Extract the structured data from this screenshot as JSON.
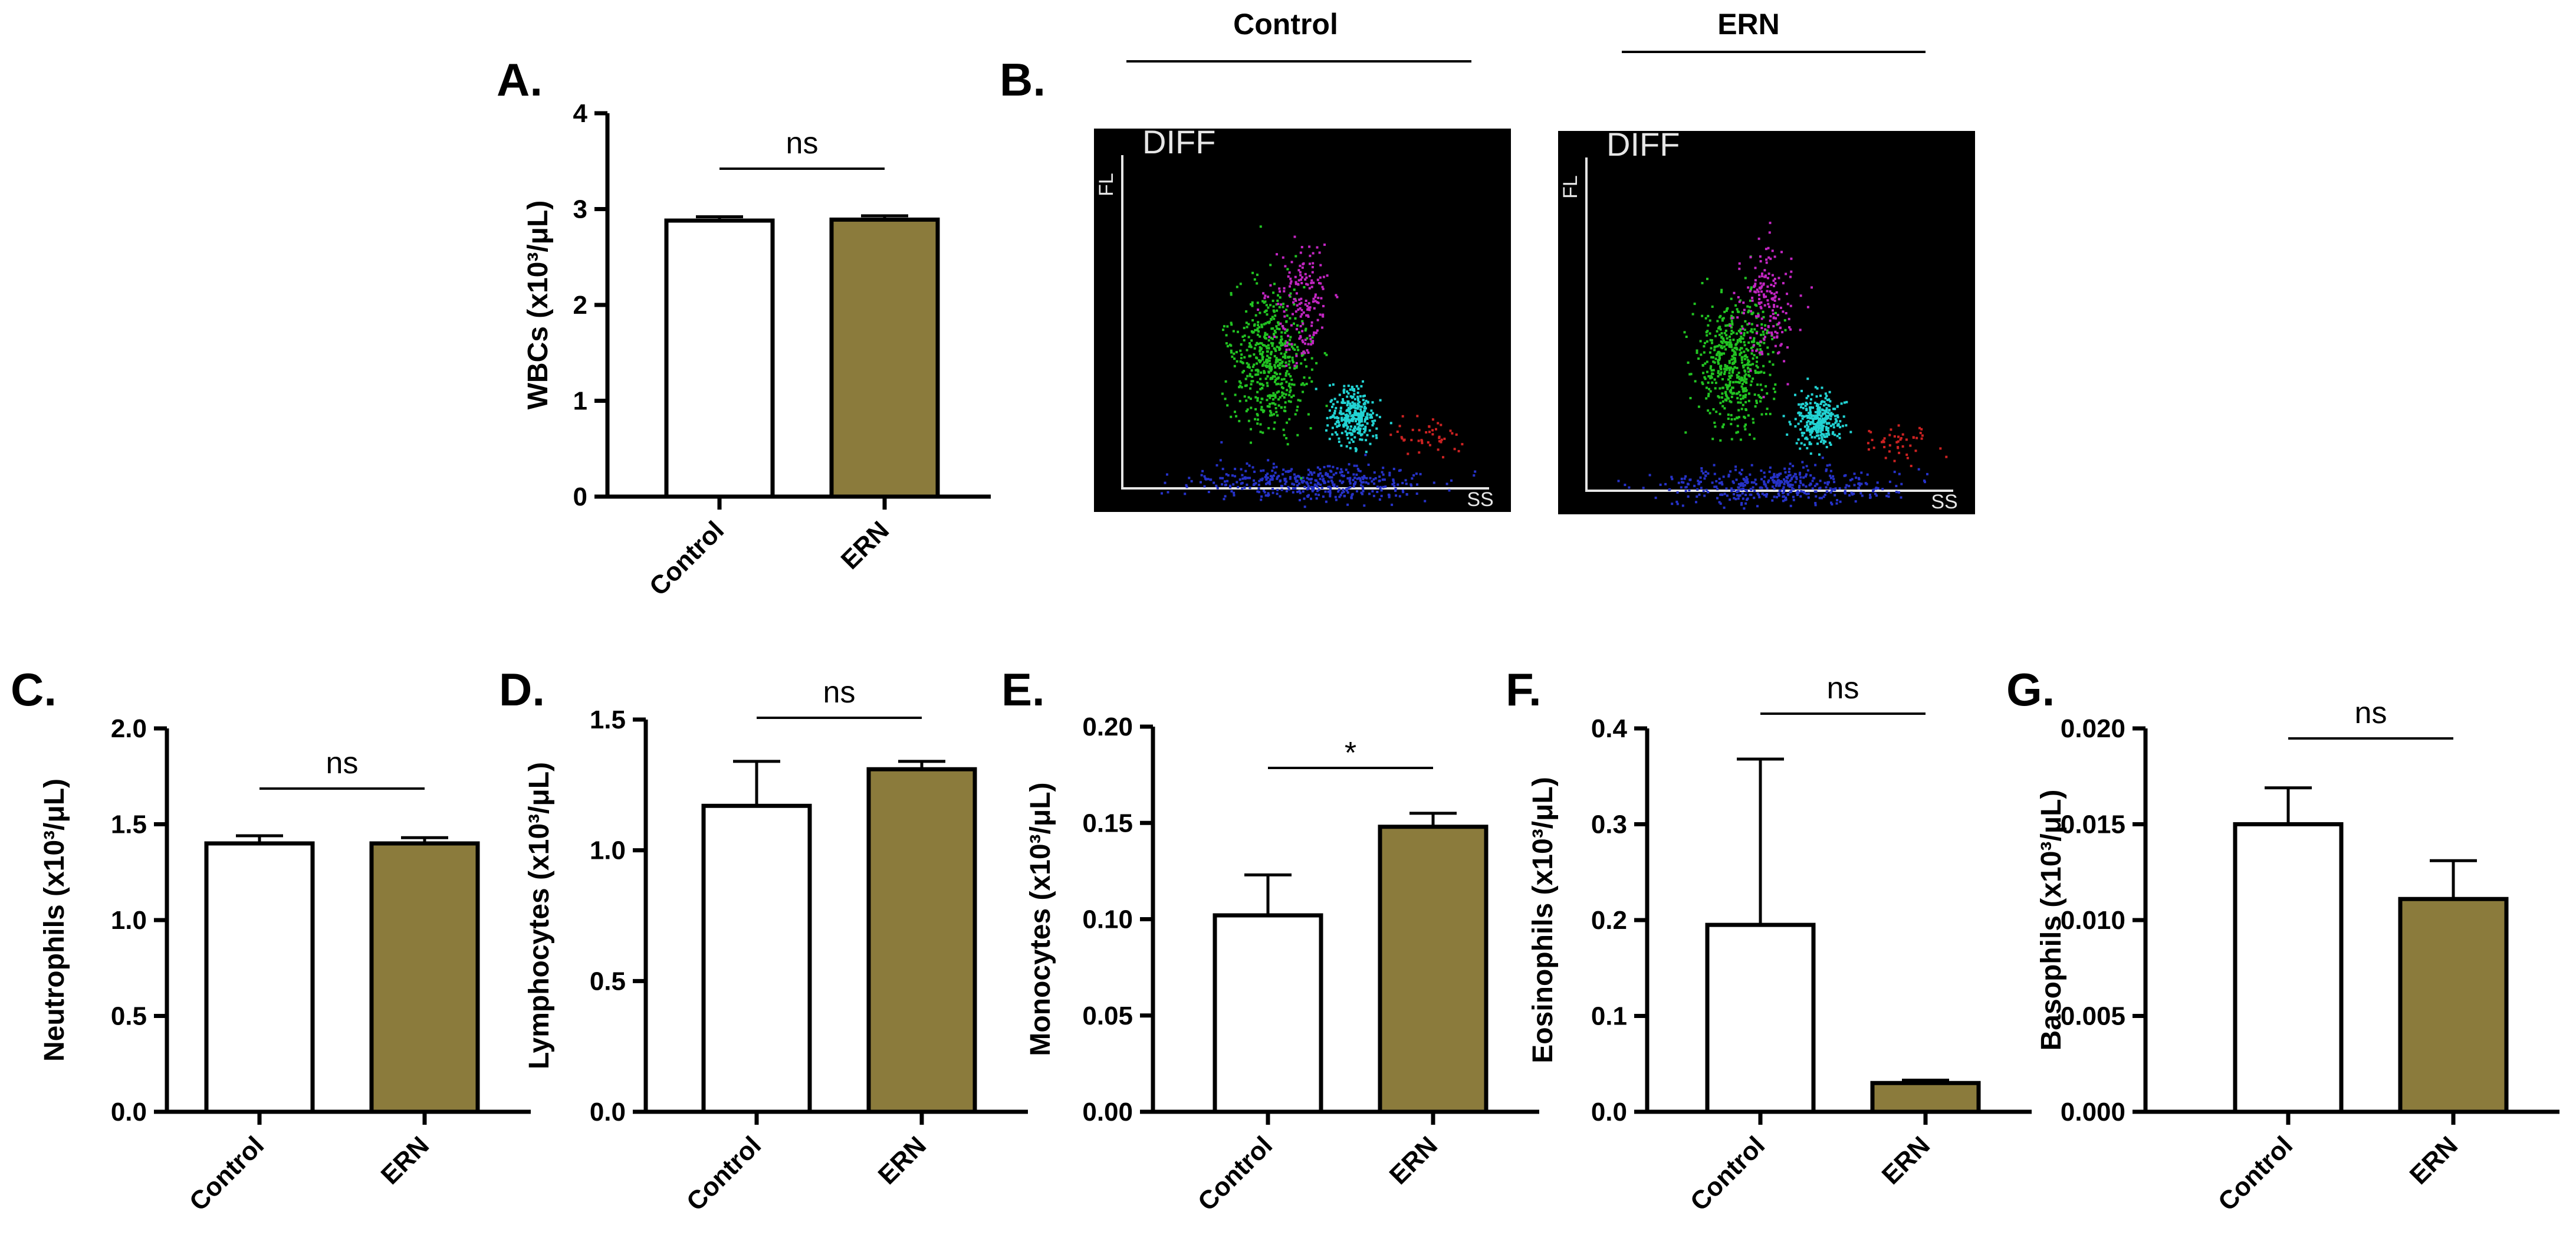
{
  "chart_data": [
    {
      "panel": "A.",
      "type": "bar",
      "categories": [
        "Control",
        "ERN"
      ],
      "values": [
        2.88,
        2.89
      ],
      "errors": [
        0.04,
        0.04
      ],
      "ylabel": "WBCs (x10³/μL)",
      "yticks": [
        "0",
        "1",
        "2",
        "3",
        "4"
      ],
      "ylim": [
        0,
        4
      ],
      "significance": "ns",
      "colors": [
        "#ffffff",
        "#8b7b3c"
      ]
    },
    {
      "panel": "C.",
      "type": "bar",
      "categories": [
        "Control",
        "ERN"
      ],
      "values": [
        1.4,
        1.4
      ],
      "errors": [
        0.04,
        0.03
      ],
      "ylabel": "Neutrophils (x10³/μL)",
      "yticks": [
        "0.0",
        "0.5",
        "1.0",
        "1.5",
        "2.0"
      ],
      "ylim": [
        0,
        2
      ],
      "significance": "ns",
      "colors": [
        "#ffffff",
        "#8b7b3c"
      ]
    },
    {
      "panel": "D.",
      "type": "bar",
      "categories": [
        "Control",
        "ERN"
      ],
      "values": [
        1.17,
        1.31
      ],
      "errors": [
        0.17,
        0.03
      ],
      "ylabel": "Lymphocytes (x10³/μL)",
      "yticks": [
        "0.0",
        "0.5",
        "1.0",
        "1.5"
      ],
      "ylim": [
        0,
        1.5
      ],
      "significance": "ns",
      "colors": [
        "#ffffff",
        "#8b7b3c"
      ]
    },
    {
      "panel": "E.",
      "type": "bar",
      "categories": [
        "Control",
        "ERN"
      ],
      "values": [
        0.102,
        0.148
      ],
      "errors": [
        0.021,
        0.007
      ],
      "ylabel": "Monocytes (x10³/μL)",
      "yticks": [
        "0.00",
        "0.05",
        "0.10",
        "0.15",
        "0.20"
      ],
      "ylim": [
        0,
        0.2
      ],
      "significance": "*",
      "colors": [
        "#ffffff",
        "#8b7b3c"
      ]
    },
    {
      "panel": "F.",
      "type": "bar",
      "categories": [
        "Control",
        "ERN"
      ],
      "values": [
        0.195,
        0.03
      ],
      "errors": [
        0.173,
        0.003
      ],
      "ylabel": "Eosinophils (x10³/μL)",
      "yticks": [
        "0.0",
        "0.1",
        "0.2",
        "0.3",
        "0.4"
      ],
      "ylim": [
        0,
        0.4
      ],
      "significance": "ns",
      "colors": [
        "#ffffff",
        "#8b7b3c"
      ]
    },
    {
      "panel": "G.",
      "type": "bar",
      "categories": [
        "Control",
        "ERN"
      ],
      "values": [
        0.015,
        0.0111
      ],
      "errors": [
        0.0019,
        0.002
      ],
      "ylabel": "Basophils (x10³/μL)",
      "yticks": [
        "0.000",
        "0.005",
        "0.010",
        "0.015",
        "0.020"
      ],
      "ylim": [
        0,
        0.02
      ],
      "significance": "ns",
      "colors": [
        "#ffffff",
        "#8b7b3c"
      ]
    }
  ],
  "scatter_panel": {
    "label": "B.",
    "plots": [
      {
        "header": "Control",
        "title": "DIFF",
        "y_axis": "FL",
        "x_axis": "SS"
      },
      {
        "header": "ERN",
        "title": "DIFF",
        "y_axis": "FL",
        "x_axis": "SS"
      }
    ],
    "population_colors": {
      "neutrophil": "#22c322",
      "lymphocyte": "#2632c8",
      "monocyte": "#c226c2",
      "eosinophil": "#22d3d3",
      "basophil": "#cc2222"
    }
  }
}
